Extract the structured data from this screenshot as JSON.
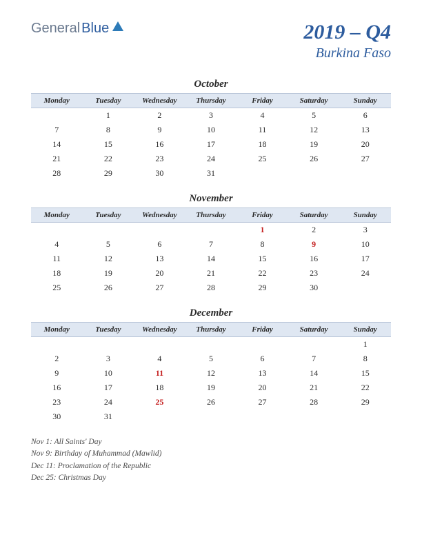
{
  "logo": {
    "part1": "General",
    "part2": "Blue"
  },
  "title": {
    "year_q": "2019 – Q4",
    "country": "Burkina Faso"
  },
  "weekdays": [
    "Monday",
    "Tuesday",
    "Wednesday",
    "Thursday",
    "Friday",
    "Saturday",
    "Sunday"
  ],
  "months": [
    {
      "name": "October",
      "weeks": [
        [
          "",
          "1",
          "2",
          "3",
          "4",
          "5",
          "6"
        ],
        [
          "7",
          "8",
          "9",
          "10",
          "11",
          "12",
          "13"
        ],
        [
          "14",
          "15",
          "16",
          "17",
          "18",
          "19",
          "20"
        ],
        [
          "21",
          "22",
          "23",
          "24",
          "25",
          "26",
          "27"
        ],
        [
          "28",
          "29",
          "30",
          "31",
          "",
          "",
          ""
        ]
      ],
      "holidays": []
    },
    {
      "name": "November",
      "weeks": [
        [
          "",
          "",
          "",
          "",
          "1",
          "2",
          "3"
        ],
        [
          "4",
          "5",
          "6",
          "7",
          "8",
          "9",
          "10"
        ],
        [
          "11",
          "12",
          "13",
          "14",
          "15",
          "16",
          "17"
        ],
        [
          "18",
          "19",
          "20",
          "21",
          "22",
          "23",
          "24"
        ],
        [
          "25",
          "26",
          "27",
          "28",
          "29",
          "30",
          ""
        ]
      ],
      "holidays": [
        "1",
        "9"
      ]
    },
    {
      "name": "December",
      "weeks": [
        [
          "",
          "",
          "",
          "",
          "",
          "",
          "1"
        ],
        [
          "2",
          "3",
          "4",
          "5",
          "6",
          "7",
          "8"
        ],
        [
          "9",
          "10",
          "11",
          "12",
          "13",
          "14",
          "15"
        ],
        [
          "16",
          "17",
          "18",
          "19",
          "20",
          "21",
          "22"
        ],
        [
          "23",
          "24",
          "25",
          "26",
          "27",
          "28",
          "29"
        ],
        [
          "30",
          "31",
          "",
          "",
          "",
          "",
          ""
        ]
      ],
      "holidays": [
        "11",
        "25"
      ]
    }
  ],
  "holiday_list": [
    "Nov 1: All Saints' Day",
    "Nov 9: Birthday of Muhammad (Mawlid)",
    "Dec 11: Proclamation of the Republic",
    "Dec 25: Christmas Day"
  ],
  "colors": {
    "header_bg": "#dfe7f2",
    "header_border": "#b8c5d8",
    "holiday": "#c41e1e",
    "title": "#2d5c9e"
  }
}
